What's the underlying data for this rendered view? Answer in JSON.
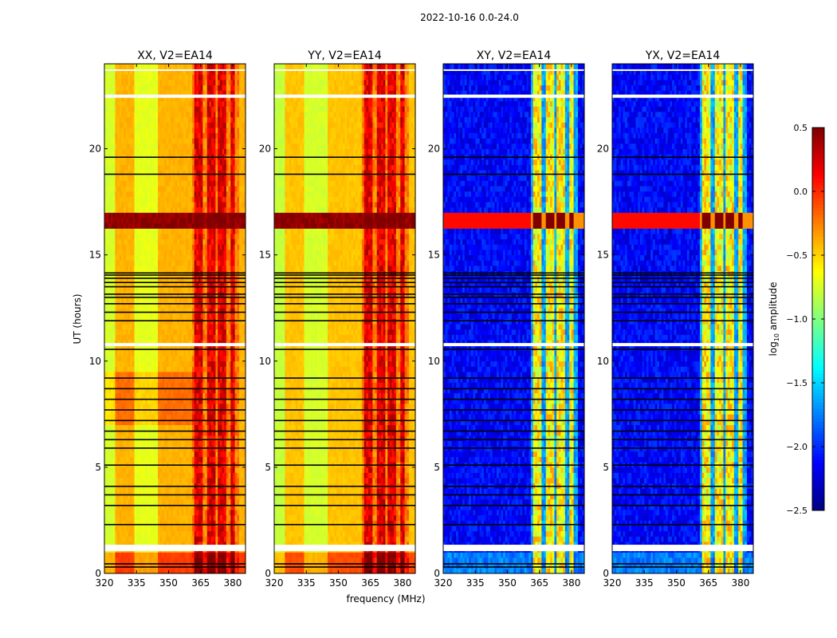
{
  "suptitle": "2022-10-16 0.0-24.0",
  "chart_data": {
    "type": "heatmap",
    "xlabel": "frequency (MHz)",
    "ylabel": "UT (hours)",
    "xlim": [
      320,
      386
    ],
    "ylim": [
      0,
      24
    ],
    "xticks": [
      320,
      335,
      350,
      365,
      380
    ],
    "yticks": [
      0,
      5,
      10,
      15,
      20
    ],
    "colorbar": {
      "label": "log10 amplitude",
      "label_main": "log",
      "label_sub": "10",
      "label_rest": " amplitude",
      "colormap": "jet",
      "range": [
        -2.5,
        0.5
      ],
      "ticks": [
        "0.5",
        "0.0",
        "−0.5",
        "−1.0",
        "−1.5",
        "−2.0",
        "−2.5"
      ],
      "tick_values": [
        0.5,
        0.0,
        -0.5,
        -1.0,
        -1.5,
        -2.0,
        -2.5
      ]
    },
    "panels": [
      {
        "title": "XX, V2=EA14",
        "kind": "parallel",
        "base": -0.5
      },
      {
        "title": "YY, V2=EA14",
        "kind": "parallel",
        "base": -0.55
      },
      {
        "title": "XY, V2=EA14",
        "kind": "cross",
        "base": -2.3
      },
      {
        "title": "YX, V2=EA14",
        "kind": "cross",
        "base": -2.3
      }
    ],
    "rfi_channels_mhz": [
      [
        361.8,
        366.3
      ],
      [
        367.8,
        371.9
      ],
      [
        373.0,
        377.0
      ],
      [
        378.6,
        381.2
      ]
    ],
    "strong_event_hours": [
      16.2,
      17.0
    ],
    "flagged_hours": [
      [
        1.05,
        1.35
      ],
      [
        10.7,
        10.85
      ],
      [
        22.4,
        22.55
      ],
      [
        23.68,
        23.74
      ]
    ],
    "dropout_lines_hours": [
      0.3,
      0.45,
      2.3,
      3.2,
      3.7,
      4.1,
      5.1,
      5.9,
      6.3,
      6.7,
      7.2,
      7.7,
      8.2,
      8.7,
      9.2,
      10.55,
      11.9,
      12.3,
      12.7,
      13.0,
      13.15,
      13.5,
      13.7,
      13.9,
      14.05,
      14.15,
      18.8,
      19.6
    ]
  }
}
